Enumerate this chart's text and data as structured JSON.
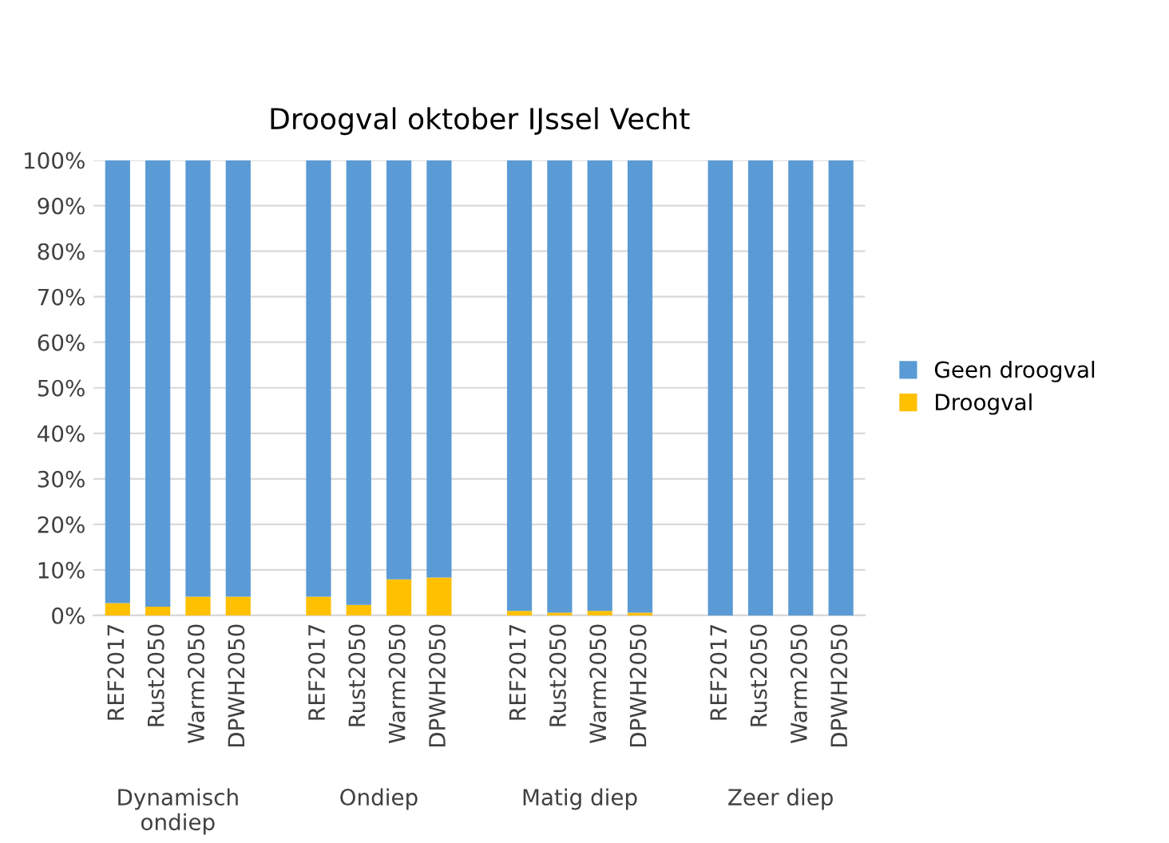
{
  "chart_data": {
    "type": "bar",
    "title": "Droogval oktober IJssel Vecht",
    "stacked": true,
    "categories": [
      "REF2017",
      "Rust2050",
      "Warm2050",
      "DPWH2050",
      null,
      "REF2017",
      "Rust2050",
      "Warm2050",
      "DPWH2050",
      null,
      "REF2017",
      "Rust2050",
      "Warm2050",
      "DPWH2050",
      null,
      "REF2017",
      "Rust2050",
      "Warm2050",
      "DPWH2050"
    ],
    "series": [
      {
        "name": "Droogval",
        "color": "#ffc000",
        "values": [
          2.7,
          1.9,
          4.1,
          4.1,
          null,
          4.1,
          2.3,
          7.9,
          8.3,
          null,
          1.0,
          0.6,
          1.0,
          0.6,
          null,
          0,
          0,
          0,
          0
        ]
      },
      {
        "name": "Geen droogval",
        "color": "#5b9bd5",
        "values": [
          97.3,
          98.1,
          95.9,
          95.9,
          null,
          95.9,
          97.7,
          92.1,
          91.7,
          null,
          99.0,
          99.4,
          99.0,
          99.4,
          null,
          100,
          100,
          100,
          100
        ]
      }
    ],
    "ylim": [
      0,
      100
    ],
    "yticks": [
      {
        "value": 0,
        "label": "0%"
      },
      {
        "value": 10,
        "label": "10%"
      },
      {
        "value": 20,
        "label": "20%"
      },
      {
        "value": 30,
        "label": "30%"
      },
      {
        "value": 40,
        "label": "40%"
      },
      {
        "value": 50,
        "label": "50%"
      },
      {
        "value": 60,
        "label": "60%"
      },
      {
        "value": 70,
        "label": "70%"
      },
      {
        "value": 80,
        "label": "80%"
      },
      {
        "value": 90,
        "label": "90%"
      },
      {
        "value": 100,
        "label": "100%"
      }
    ],
    "grid": "y",
    "legend": "right",
    "annotations": [
      "Dynamisch\nondiep",
      "Ondiep",
      "Matig diep",
      "Zeer diep"
    ]
  }
}
